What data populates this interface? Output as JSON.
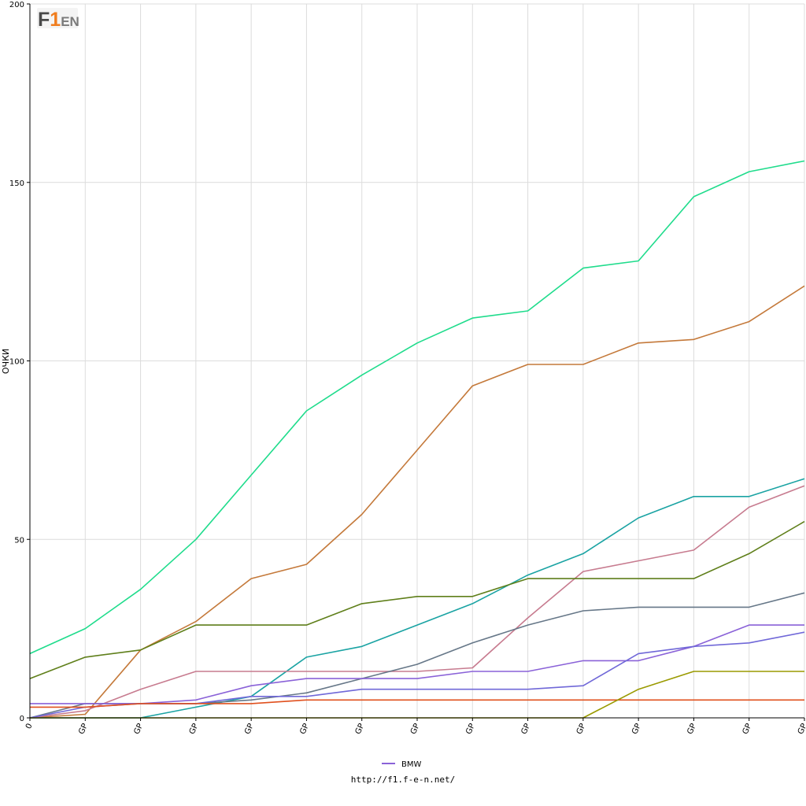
{
  "chart_data": {
    "type": "line",
    "x": [
      "0",
      "GP",
      "GP",
      "GP",
      "GP",
      "GP",
      "GP",
      "GP",
      "GP",
      "GP",
      "GP",
      "GP",
      "GP",
      "GP",
      "GP"
    ],
    "ylabel": "ОЧКИ",
    "ylim": [
      0,
      200
    ],
    "yticks": [
      0,
      50,
      100,
      150,
      200
    ],
    "grid": true,
    "legend": "bottom-center",
    "series": [
      {
        "color": "#1fdc8c",
        "values": [
          18,
          25,
          36,
          50,
          68,
          86,
          96,
          105,
          112,
          114,
          126,
          128,
          146,
          153,
          156
        ]
      },
      {
        "color": "#c4793a",
        "values": [
          0,
          1,
          19,
          27,
          39,
          43,
          57,
          75,
          93,
          99,
          99,
          105,
          106,
          111,
          121
        ]
      },
      {
        "color": "#1aa3a3",
        "values": [
          0,
          0,
          0,
          3,
          6,
          17,
          20,
          26,
          32,
          40,
          46,
          56,
          62,
          62,
          67
        ]
      },
      {
        "color": "#c77b8f",
        "values": [
          0,
          2,
          8,
          13,
          13,
          13,
          13,
          13,
          14,
          28,
          41,
          44,
          47,
          59,
          65
        ]
      },
      {
        "color": "#5f7f1a",
        "values": [
          11,
          17,
          19,
          26,
          26,
          26,
          32,
          34,
          34,
          39,
          39,
          39,
          39,
          46,
          55
        ]
      },
      {
        "color": "#667788",
        "values": [
          0,
          4,
          4,
          4,
          5,
          7,
          11,
          15,
          21,
          26,
          30,
          31,
          31,
          31,
          35
        ]
      },
      {
        "name": "BMW",
        "color": "#8a62d8",
        "values": [
          4,
          4,
          4,
          5,
          9,
          11,
          11,
          11,
          13,
          13,
          16,
          16,
          20,
          26,
          26
        ]
      },
      {
        "color": "#7068d8",
        "values": [
          0,
          3,
          4,
          4,
          6,
          6,
          8,
          8,
          8,
          8,
          9,
          18,
          20,
          21,
          24
        ]
      },
      {
        "color": "#e0501e",
        "values": [
          3,
          3,
          4,
          4,
          4,
          5,
          5,
          5,
          5,
          5,
          5,
          5,
          5,
          5,
          5
        ]
      },
      {
        "color": "#9a9a00",
        "values": [
          0,
          0,
          0,
          0,
          0,
          0,
          0,
          0,
          0,
          0,
          0,
          8,
          13,
          13,
          13
        ]
      }
    ]
  },
  "footer": {
    "url": "http://f1.f-e-n.net/"
  },
  "logo": {
    "f": "F",
    "one": "1",
    "en": "EN"
  }
}
